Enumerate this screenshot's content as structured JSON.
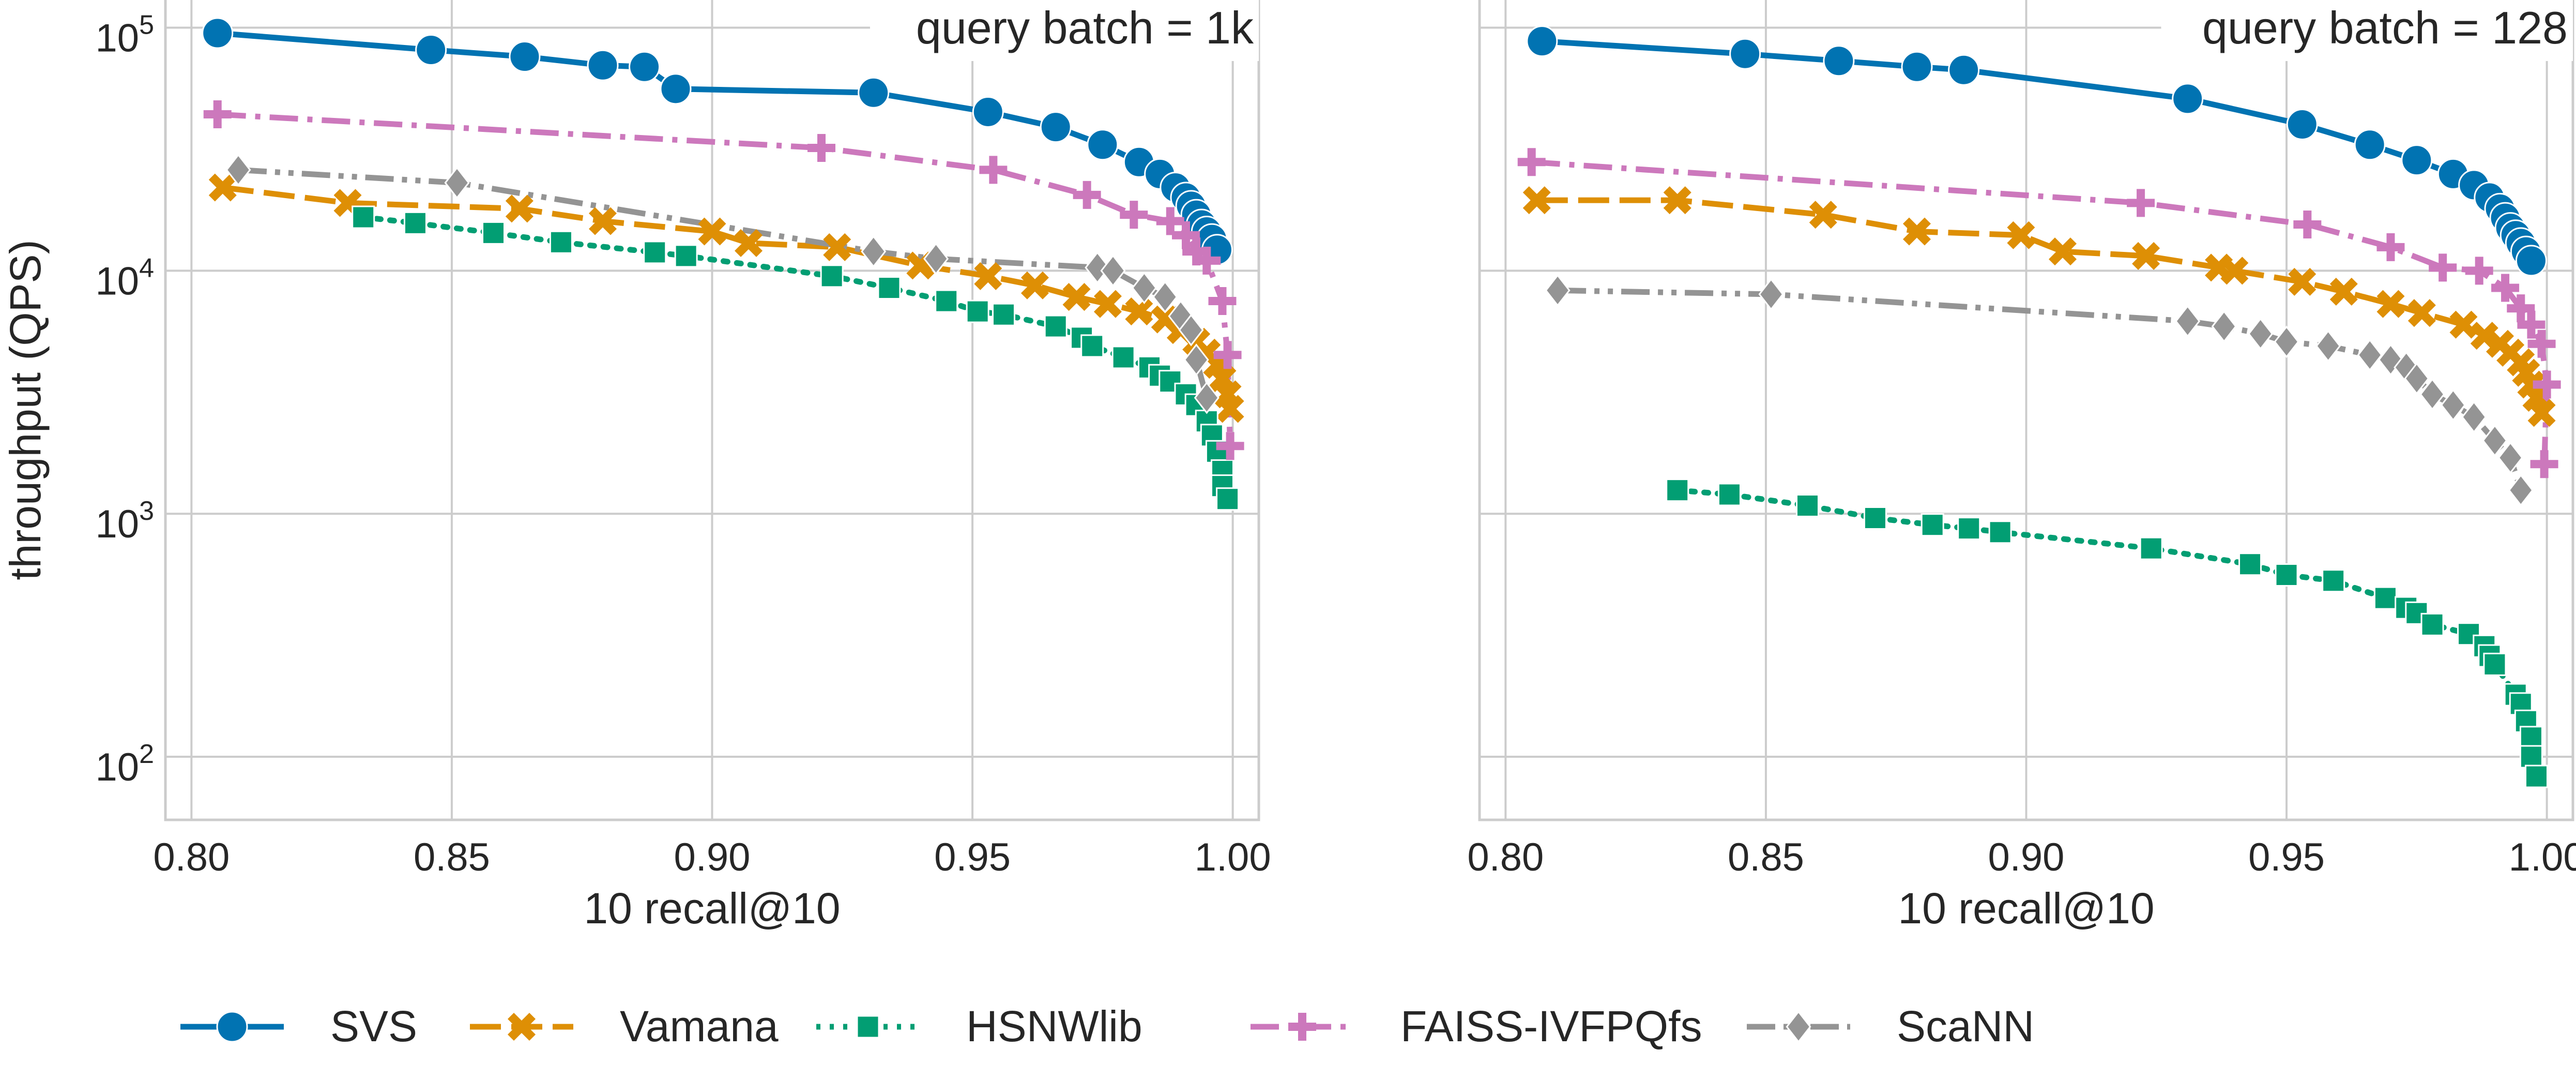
{
  "chart_data": [
    {
      "type": "line",
      "title": "query batch = 1k",
      "xlabel": "10 recall@10",
      "ylabel": "throughput (QPS)",
      "xlim": [
        0.795,
        1.005
      ],
      "ylim": [
        55,
        130000
      ],
      "yscale": "log",
      "xticks": [
        0.8,
        0.85,
        0.9,
        0.95,
        1.0
      ],
      "xtick_labels": [
        "0.80",
        "0.85",
        "0.90",
        "0.95",
        "1.00"
      ],
      "yticks": [
        100,
        1000,
        10000,
        100000
      ],
      "ytick_labels": [
        "10^2",
        "10^3",
        "10^4",
        "10^5"
      ],
      "grid": true,
      "series": [
        {
          "name": "SVS",
          "color": "#0173b2",
          "dash": "solid",
          "marker": "circle",
          "x": [
            0.805,
            0.846,
            0.864,
            0.879,
            0.887,
            0.893,
            0.931,
            0.953,
            0.966,
            0.975,
            0.982,
            0.986,
            0.989,
            0.991,
            0.992,
            0.993,
            0.994,
            0.995,
            0.996,
            0.997
          ],
          "y": [
            95000,
            81000,
            76000,
            70000,
            69000,
            56000,
            54000,
            45000,
            39000,
            33000,
            28000,
            25000,
            22000,
            20000,
            18500,
            17000,
            15500,
            14500,
            13500,
            12200
          ]
        },
        {
          "name": "Vamana",
          "color": "#de8f05",
          "dash": "dashed",
          "marker": "x",
          "x": [
            0.806,
            0.83,
            0.863,
            0.879,
            0.9,
            0.907,
            0.924,
            0.94,
            0.953,
            0.962,
            0.97,
            0.976,
            0.982,
            0.987,
            0.99,
            0.993,
            0.995,
            0.997,
            0.998,
            0.999,
            0.9995
          ],
          "y": [
            22000,
            19000,
            18000,
            16000,
            14500,
            13000,
            12500,
            10500,
            9500,
            8700,
            7800,
            7300,
            6800,
            6300,
            5700,
            5100,
            4600,
            4100,
            3600,
            3100,
            2700
          ]
        },
        {
          "name": "HSNWlib",
          "color": "#029e73",
          "dash": "dotted",
          "marker": "square",
          "x": [
            0.833,
            0.843,
            0.858,
            0.871,
            0.889,
            0.895,
            0.923,
            0.934,
            0.945,
            0.951,
            0.956,
            0.966,
            0.971,
            0.973,
            0.979,
            0.984,
            0.986,
            0.988,
            0.991,
            0.993,
            0.995,
            0.996,
            0.997,
            0.998,
            0.998,
            0.999
          ],
          "y": [
            16600,
            15700,
            14300,
            13100,
            11900,
            11500,
            9500,
            8500,
            7500,
            6800,
            6600,
            5900,
            5300,
            4900,
            4400,
            4000,
            3700,
            3500,
            3100,
            2800,
            2400,
            2100,
            1800,
            1500,
            1300,
            1150
          ]
        },
        {
          "name": "FAISS-IVFPQfs",
          "color": "#cc78bc",
          "dash": "dashdot",
          "marker": "plus",
          "x": [
            0.805,
            0.921,
            0.954,
            0.972,
            0.981,
            0.988,
            0.991,
            0.993,
            0.995,
            0.998,
            0.999,
            0.9995
          ],
          "y": [
            44000,
            32000,
            26000,
            20500,
            17000,
            16000,
            14000,
            12000,
            11000,
            7500,
            4500,
            1900
          ]
        },
        {
          "name": "ScaNN",
          "color": "#949494",
          "dash": "dashdotdot",
          "marker": "diamond",
          "x": [
            0.809,
            0.851,
            0.931,
            0.943,
            0.974,
            0.977,
            0.983,
            0.987,
            0.99,
            0.992,
            0.993,
            0.995
          ],
          "y": [
            26000,
            23000,
            12000,
            11200,
            10300,
            10000,
            8500,
            7800,
            6500,
            5700,
            4300,
            3000
          ]
        }
      ]
    },
    {
      "type": "line",
      "title": "query batch = 128",
      "xlabel": "10 recall@10",
      "ylabel": "",
      "xlim": [
        0.795,
        1.005
      ],
      "ylim": [
        55,
        130000
      ],
      "yscale": "log",
      "xticks": [
        0.8,
        0.85,
        0.9,
        0.95,
        1.0
      ],
      "xtick_labels": [
        "0.80",
        "0.85",
        "0.90",
        "0.95",
        "1.00"
      ],
      "yticks": [
        100,
        1000,
        10000,
        100000
      ],
      "ytick_labels": [
        "",
        "",
        "",
        ""
      ],
      "grid": true,
      "series": [
        {
          "name": "SVS",
          "color": "#0173b2",
          "dash": "solid",
          "marker": "circle",
          "x": [
            0.807,
            0.846,
            0.864,
            0.879,
            0.888,
            0.931,
            0.953,
            0.966,
            0.975,
            0.982,
            0.986,
            0.989,
            0.991,
            0.992,
            0.993,
            0.994,
            0.995,
            0.996,
            0.997
          ],
          "y": [
            88000,
            78000,
            73000,
            69000,
            67000,
            51000,
            40000,
            33000,
            28500,
            25000,
            22500,
            20000,
            18000,
            16500,
            15000,
            14000,
            13000,
            12000,
            11000
          ]
        },
        {
          "name": "Vamana",
          "color": "#de8f05",
          "dash": "dashed",
          "marker": "x",
          "x": [
            0.806,
            0.833,
            0.861,
            0.879,
            0.899,
            0.907,
            0.923,
            0.937,
            0.94,
            0.953,
            0.961,
            0.97,
            0.976,
            0.984,
            0.988,
            0.991,
            0.993,
            0.995,
            0.996,
            0.997,
            0.998,
            0.999
          ],
          "y": [
            19500,
            19500,
            17000,
            14500,
            14000,
            12000,
            11500,
            10300,
            10000,
            9000,
            8200,
            7300,
            6700,
            6000,
            5400,
            5000,
            4600,
            4200,
            3800,
            3400,
            3000,
            2600
          ]
        },
        {
          "name": "HSNWlib",
          "color": "#029e73",
          "dash": "dotted",
          "marker": "square",
          "x": [
            0.833,
            0.843,
            0.858,
            0.871,
            0.882,
            0.889,
            0.895,
            0.924,
            0.943,
            0.95,
            0.959,
            0.969,
            0.973,
            0.975,
            0.978,
            0.985,
            0.988,
            0.989,
            0.99,
            0.994,
            0.995,
            0.996,
            0.997,
            0.997,
            0.998
          ],
          "y": [
            1250,
            1200,
            1080,
            960,
            900,
            870,
            840,
            720,
            620,
            560,
            530,
            450,
            410,
            390,
            350,
            320,
            285,
            260,
            240,
            180,
            165,
            140,
            120,
            100,
            83
          ]
        },
        {
          "name": "FAISS-IVFPQfs",
          "color": "#cc78bc",
          "dash": "dashdot",
          "marker": "plus",
          "x": [
            0.805,
            0.922,
            0.954,
            0.97,
            0.98,
            0.987,
            0.992,
            0.995,
            0.997,
            0.999,
            1.0,
            0.9995
          ],
          "y": [
            28000,
            19000,
            15500,
            12500,
            10300,
            10000,
            8500,
            7000,
            6000,
            5000,
            3400,
            1600
          ]
        },
        {
          "name": "ScaNN",
          "color": "#949494",
          "dash": "dashdotdot",
          "marker": "diamond",
          "x": [
            0.81,
            0.851,
            0.931,
            0.938,
            0.945,
            0.95,
            0.958,
            0.966,
            0.97,
            0.973,
            0.975,
            0.978,
            0.982,
            0.986,
            0.99,
            0.993,
            0.995
          ],
          "y": [
            8300,
            8000,
            6200,
            5900,
            5500,
            5100,
            4900,
            4500,
            4300,
            4000,
            3600,
            3100,
            2800,
            2500,
            2000,
            1700,
            1250
          ]
        }
      ]
    }
  ],
  "legend": {
    "placement": "bottom-center",
    "entries": [
      "SVS",
      "Vamana",
      "HSNWlib",
      "FAISS-IVFPQfs",
      "ScaNN"
    ]
  }
}
